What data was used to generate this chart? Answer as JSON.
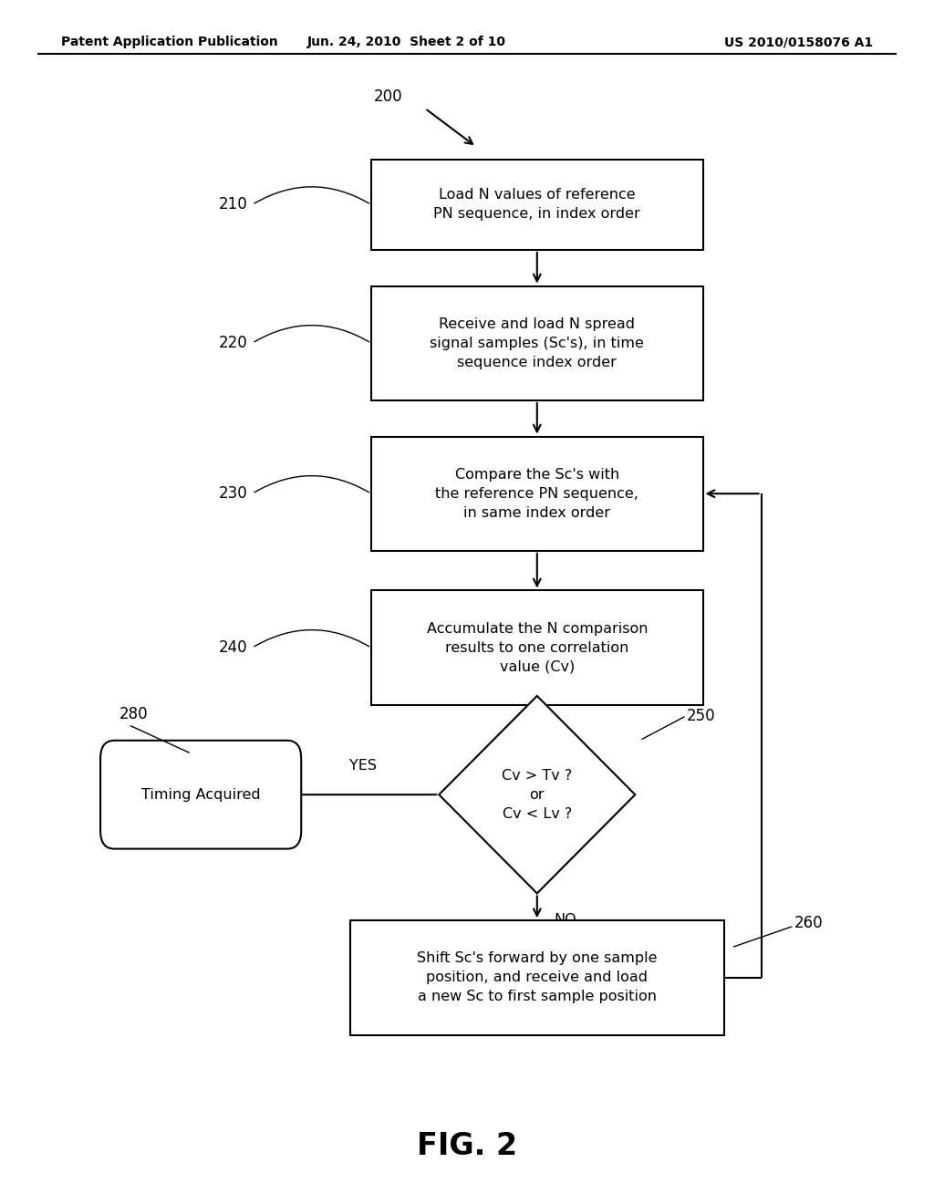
{
  "bg_color": "#ffffff",
  "header_left": "Patent Application Publication",
  "header_mid": "Jun. 24, 2010  Sheet 2 of 10",
  "header_right": "US 2010/0158076 A1",
  "fig_label": "FIG. 2",
  "font_size_box": 11.5,
  "font_size_label": 12,
  "font_size_header": 10,
  "font_size_fig": 24,
  "box210_text": "Load N values of reference\nPN sequence, in index order",
  "box220_text": "Receive and load N spread\nsignal samples (Sc's), in time\nsequence index order",
  "box230_text": "Compare the Sc's with\nthe reference PN sequence,\nin same index order",
  "box240_text": "Accumulate the N comparison\nresults to one correlation\nvalue (Cv)",
  "diamond250_text": "Cv > Tv ?\nor\nCv < Lv ?",
  "box260_text": "Shift Sc's forward by one sample\nposition, and receive and load\na new Sc to first sample position",
  "hex280_text": "Timing Acquired"
}
